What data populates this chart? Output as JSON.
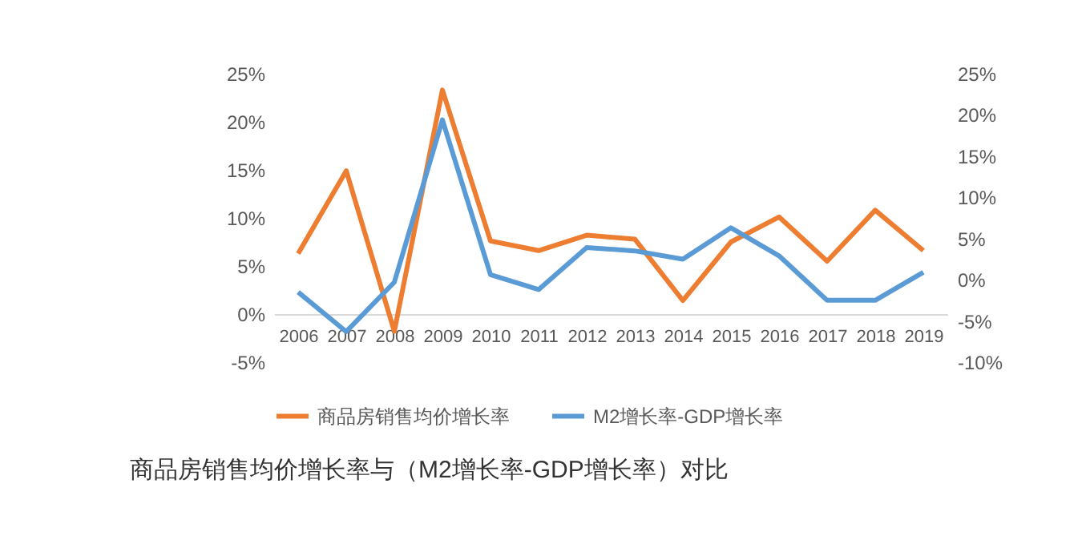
{
  "chart_data": {
    "type": "line",
    "title": "商品房销售均价增长率与（M2增长率-GDP增长率）对比",
    "categories": [
      "2006",
      "2007",
      "2008",
      "2009",
      "2010",
      "2011",
      "2012",
      "2013",
      "2014",
      "2015",
      "2016",
      "2017",
      "2018",
      "2019"
    ],
    "series": [
      {
        "name": "商品房销售均价增长率",
        "color": "#ed7d31",
        "values": [
          6.3,
          14.9,
          -1.8,
          23.3,
          7.6,
          6.6,
          8.2,
          7.8,
          1.4,
          7.5,
          10.1,
          5.5,
          10.8,
          6.6
        ]
      },
      {
        "name": "M2增长率-GDP增长率",
        "color": "#5b9bd5",
        "axis": "y2",
        "values": [
          -1.5,
          -6.3,
          -0.3,
          19.4,
          0.6,
          -1.2,
          3.9,
          3.5,
          2.5,
          6.3,
          2.9,
          -2.5,
          -2.5,
          0.9
        ]
      }
    ],
    "ylim": [
      -5,
      25
    ],
    "yticks": [
      {
        "value": -5,
        "label": "-5%"
      },
      {
        "value": 0,
        "label": "0%"
      },
      {
        "value": 5,
        "label": "5%"
      },
      {
        "value": 10,
        "label": "10%"
      },
      {
        "value": 15,
        "label": "15%"
      },
      {
        "value": 20,
        "label": "20%"
      },
      {
        "value": 25,
        "label": "25%"
      }
    ],
    "y2lim": [
      -10,
      25
    ],
    "y2ticks": [
      {
        "value": -10,
        "label": "-10%"
      },
      {
        "value": -5,
        "label": "-5%"
      },
      {
        "value": 0,
        "label": "0%"
      },
      {
        "value": 5,
        "label": "5%"
      },
      {
        "value": 10,
        "label": "10%"
      },
      {
        "value": 15,
        "label": "15%"
      },
      {
        "value": 20,
        "label": "20%"
      },
      {
        "value": 25,
        "label": "25%"
      }
    ],
    "legend": "bottom",
    "grid": false,
    "marker": "none",
    "line_style": "solid"
  }
}
